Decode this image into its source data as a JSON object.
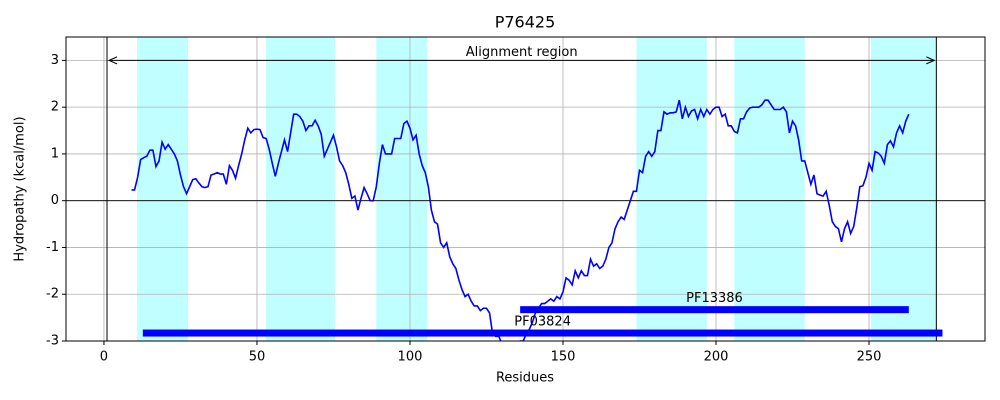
{
  "chart_data": {
    "type": "line",
    "title": "P76425",
    "x_label": "Residues",
    "y_label": "Hydropathy (kcal/mol)",
    "xlim": [
      -12.4,
      287.9
    ],
    "ylim": [
      -3,
      3.5
    ],
    "xticks": [
      0,
      50,
      100,
      150,
      200,
      250
    ],
    "yticks": [
      -3,
      -2,
      -1,
      0,
      1,
      2,
      3
    ],
    "grid": true,
    "color": "#0000ff",
    "region_color": "#00ffff",
    "regions": [
      [
        10.8,
        27.5
      ],
      [
        53,
        75.5
      ],
      [
        89,
        105.6
      ],
      [
        174,
        197
      ],
      [
        206,
        229
      ],
      [
        250.6,
        272
      ]
    ],
    "alignment_region": {
      "label": "Alignment region",
      "start": 1,
      "end": 272
    },
    "domains": [
      {
        "label": "PF13386",
        "start": 136,
        "end": 263,
        "y": -2.33
      },
      {
        "label": "PF03824",
        "start": 12.7,
        "end": 274,
        "y": -2.83
      }
    ],
    "x": [
      9,
      10,
      11,
      12,
      13,
      14,
      15,
      16,
      17,
      18,
      19,
      20,
      21,
      22,
      23,
      24,
      25,
      26,
      27,
      28,
      29,
      30,
      31,
      32,
      33,
      34,
      35,
      36,
      37,
      38,
      39,
      40,
      41,
      42,
      43,
      44,
      45,
      46,
      47,
      48,
      49,
      50,
      51,
      52,
      53,
      54,
      55,
      56,
      57,
      58,
      59,
      60,
      61,
      62,
      63,
      64,
      65,
      66,
      67,
      68,
      69,
      70,
      71,
      72,
      73,
      74,
      75,
      76,
      77,
      78,
      79,
      80,
      81,
      82,
      83,
      84,
      85,
      86,
      87,
      88,
      89,
      90,
      91,
      92,
      93,
      94,
      95,
      96,
      97,
      98,
      99,
      100,
      101,
      102,
      103,
      104,
      105,
      106,
      107,
      108,
      109,
      110,
      111,
      112,
      113,
      114,
      115,
      116,
      117,
      118,
      119,
      120,
      121,
      122,
      123,
      124,
      125,
      126,
      127,
      128,
      129,
      130,
      131,
      132,
      133,
      134,
      135,
      136,
      137,
      138,
      139,
      140,
      141,
      142,
      143,
      144,
      145,
      146,
      147,
      148,
      149,
      150,
      151,
      152,
      153,
      154,
      155,
      156,
      157,
      158,
      159,
      160,
      161,
      162,
      163,
      164,
      165,
      166,
      167,
      168,
      169,
      170,
      171,
      172,
      173,
      174,
      175,
      176,
      177,
      178,
      179,
      180,
      181,
      182,
      183,
      184,
      185,
      186,
      187,
      188,
      189,
      190,
      191,
      192,
      193,
      194,
      195,
      196,
      197,
      198,
      199,
      200,
      201,
      202,
      203,
      204,
      205,
      206,
      207,
      208,
      209,
      210,
      211,
      212,
      213,
      214,
      215,
      216,
      217,
      218,
      219,
      220,
      221,
      222,
      223,
      224,
      225,
      226,
      227,
      228,
      229,
      230,
      231,
      232,
      233,
      234,
      235,
      236,
      237,
      238,
      239,
      240,
      241,
      242,
      243,
      244,
      245,
      246,
      247,
      248,
      249,
      250,
      251,
      252,
      253,
      254,
      255,
      256,
      257,
      258,
      259,
      260,
      261,
      262,
      263
    ],
    "values": [
      0.23,
      0.23,
      0.5,
      0.88,
      0.92,
      0.95,
      1.08,
      1.08,
      0.73,
      0.85,
      1.25,
      1.1,
      1.2,
      1.1,
      1.0,
      0.85,
      0.55,
      0.3,
      0.15,
      0.3,
      0.45,
      0.47,
      0.38,
      0.3,
      0.28,
      0.3,
      0.55,
      0.57,
      0.6,
      0.57,
      0.57,
      0.35,
      0.75,
      0.65,
      0.48,
      0.75,
      1.0,
      1.3,
      1.55,
      1.45,
      1.52,
      1.53,
      1.52,
      1.35,
      1.33,
      1.1,
      0.8,
      0.52,
      0.8,
      1.05,
      1.3,
      1.05,
      1.45,
      1.85,
      1.85,
      1.8,
      1.7,
      1.5,
      1.6,
      1.6,
      1.72,
      1.6,
      1.42,
      0.95,
      1.1,
      1.25,
      1.4,
      1.15,
      0.85,
      0.75,
      0.6,
      0.35,
      0.05,
      0.1,
      -0.2,
      0.05,
      0.28,
      0.15,
      0.0,
      0.0,
      0.3,
      0.8,
      1.2,
      1.0,
      1.0,
      1.0,
      1.33,
      1.33,
      1.33,
      1.65,
      1.7,
      1.55,
      1.3,
      1.4,
      1.0,
      0.75,
      0.6,
      0.3,
      -0.2,
      -0.45,
      -0.5,
      -0.9,
      -1.0,
      -0.9,
      -1.2,
      -1.35,
      -1.45,
      -1.7,
      -1.9,
      -2.05,
      -2.0,
      -2.15,
      -2.25,
      -2.25,
      -2.35,
      -2.3,
      -2.3,
      -2.4,
      -2.85,
      -2.9,
      -2.9,
      -3.05,
      -3.2,
      -3.3,
      -3.4,
      -3.2,
      -3.05,
      -3.0,
      -3.0,
      -2.85,
      -2.75,
      -2.6,
      -2.4,
      -2.3,
      -2.2,
      -2.2,
      -2.15,
      -2.1,
      -2.15,
      -2.05,
      -2.1,
      -1.95,
      -1.65,
      -1.7,
      -1.8,
      -1.5,
      -1.65,
      -1.5,
      -1.6,
      -1.6,
      -1.25,
      -1.4,
      -1.35,
      -1.45,
      -1.4,
      -1.25,
      -1.0,
      -0.9,
      -0.6,
      -0.45,
      -0.35,
      -0.4,
      -0.2,
      0.0,
      0.2,
      0.2,
      0.65,
      0.6,
      0.95,
      1.05,
      0.95,
      1.05,
      1.5,
      1.5,
      1.9,
      1.85,
      1.88,
      1.88,
      1.9,
      2.15,
      1.75,
      2.0,
      1.8,
      1.92,
      1.95,
      1.75,
      1.95,
      1.8,
      1.95,
      1.85,
      1.95,
      2.0,
      2.0,
      1.8,
      1.85,
      1.6,
      1.6,
      1.48,
      1.45,
      1.75,
      1.75,
      1.9,
      1.98,
      2.0,
      2.0,
      2.0,
      2.05,
      2.15,
      2.15,
      2.05,
      1.95,
      1.95,
      1.95,
      2.0,
      1.9,
      1.45,
      1.7,
      1.6,
      1.3,
      0.85,
      0.85,
      0.6,
      0.35,
      0.55,
      0.15,
      0.12,
      0.1,
      0.2,
      -0.1,
      -0.45,
      -0.55,
      -0.6,
      -0.88,
      -0.6,
      -0.45,
      -0.7,
      -0.55,
      -0.15,
      0.3,
      0.32,
      0.5,
      0.8,
      0.65,
      1.05,
      1.02,
      0.95,
      0.8,
      1.2,
      1.28,
      1.15,
      1.45,
      1.6,
      1.45,
      1.7,
      1.85
    ]
  }
}
